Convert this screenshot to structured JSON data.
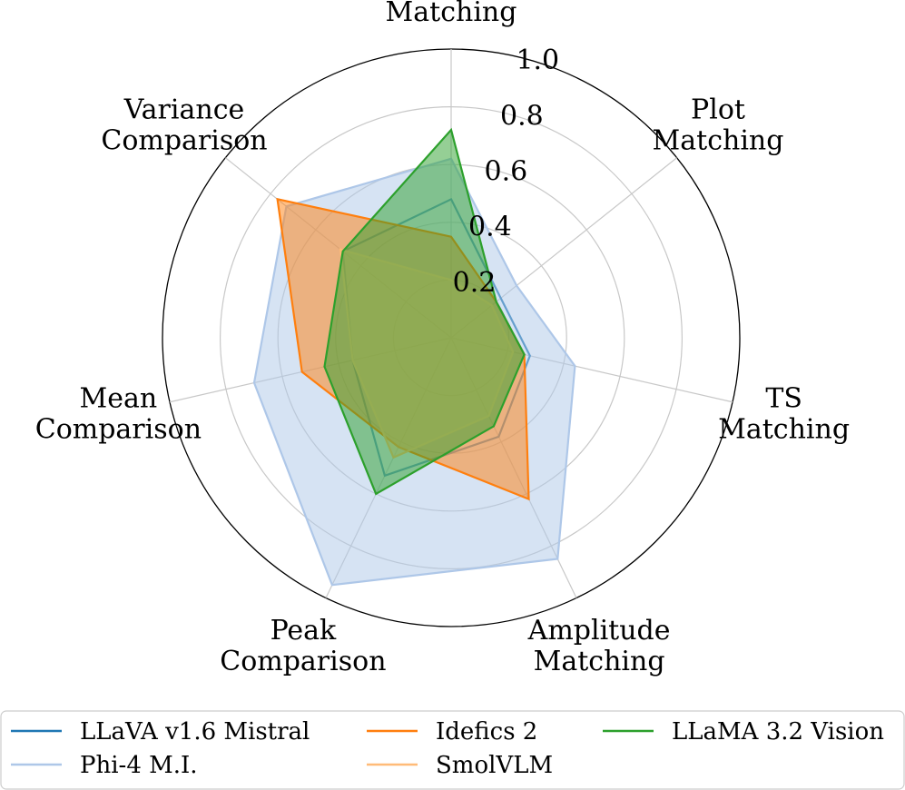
{
  "chart_data": {
    "type": "radar",
    "axes": [
      "Caption\nMatching",
      "Plot\nMatching",
      "TS\nMatching",
      "Amplitude\nMatching",
      "Peak\nComparison",
      "Mean\nComparison",
      "Variance\nComparison"
    ],
    "rlim": [
      0,
      1.0
    ],
    "rticks": [
      "0.2",
      "0.4",
      "0.6",
      "0.8",
      "1.0"
    ],
    "rtick_values": [
      0.2,
      0.4,
      0.6,
      0.8,
      1.0
    ],
    "grid": true,
    "legend_placement": "bottom",
    "series": [
      {
        "name": "LLaVA v1.6 Mistral",
        "color": "#1f77b4",
        "fill": false,
        "values": [
          0.48,
          0.22,
          0.28,
          0.38,
          0.53,
          0.35,
          0.48
        ]
      },
      {
        "name": "Phi-4 M.I.",
        "color": "#aec7e8",
        "fill": true,
        "values": [
          0.62,
          0.29,
          0.44,
          0.85,
          0.95,
          0.7,
          0.73
        ]
      },
      {
        "name": "Idefics 2",
        "color": "#ff7f0e",
        "fill": true,
        "values": [
          0.35,
          0.2,
          0.26,
          0.62,
          0.42,
          0.53,
          0.77
        ]
      },
      {
        "name": "SmolVLM",
        "color": "#ffbb78",
        "fill": true,
        "values": [
          0.2,
          0.18,
          0.22,
          0.3,
          0.46,
          0.35,
          0.49
        ]
      },
      {
        "name": "LLaMA 3.2 Vision",
        "color": "#2ca02c",
        "fill": true,
        "values": [
          0.72,
          0.2,
          0.26,
          0.34,
          0.6,
          0.45,
          0.48
        ]
      }
    ]
  }
}
